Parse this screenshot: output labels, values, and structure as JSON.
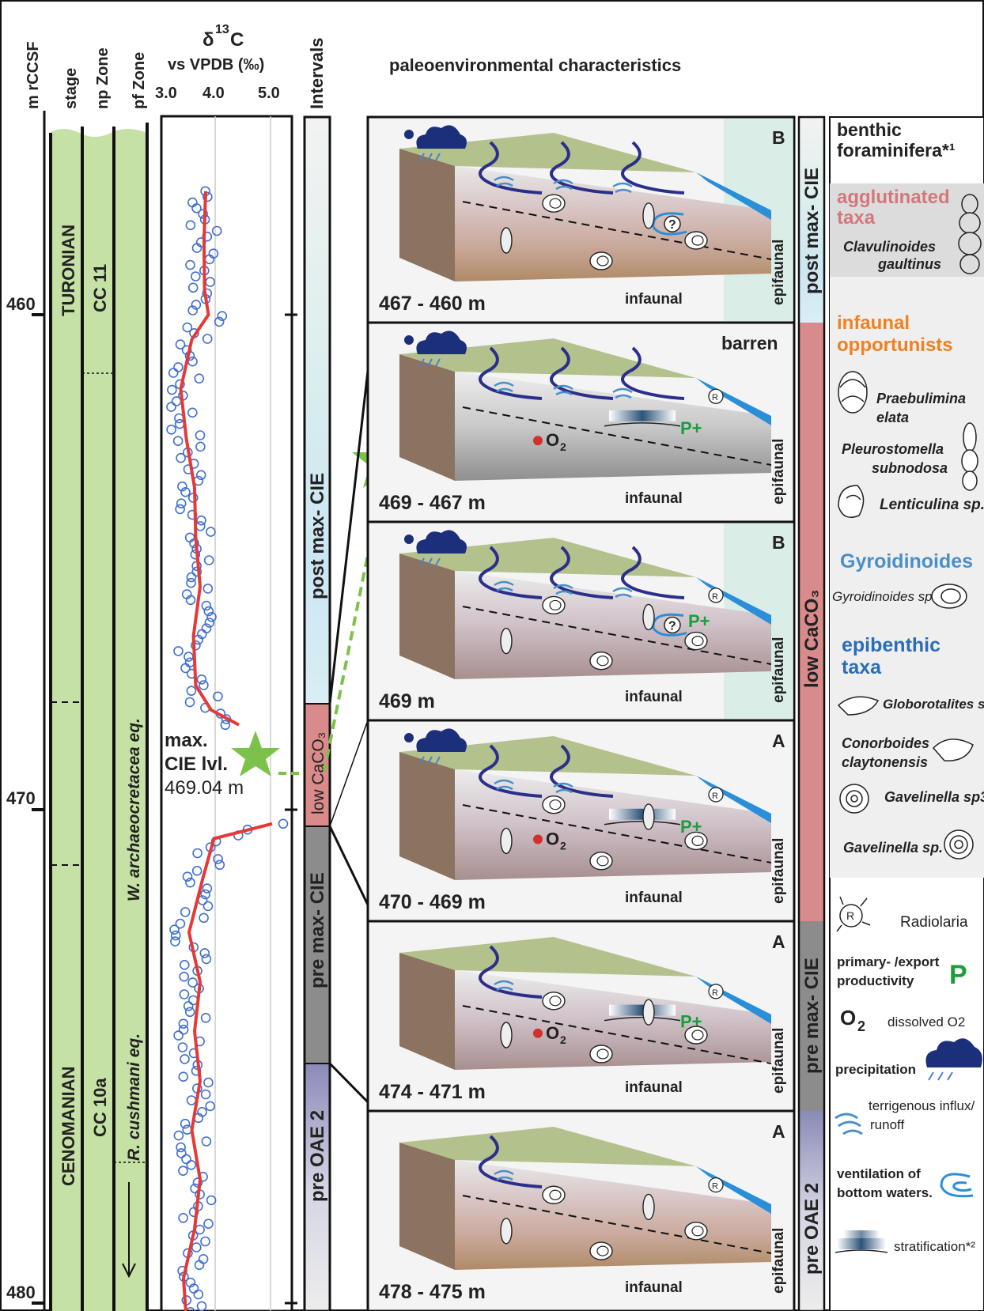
{
  "headers": {
    "depth": "m rCCSF",
    "stage": "stage",
    "np_zone": "np Zone",
    "pf_zone": "pf  Zone",
    "isotope_title_a": "δ",
    "isotope_title_sup": "13",
    "isotope_title_b": "C",
    "isotope_sub": "vs VPDB (‰)",
    "intervals": "Intervals",
    "paleo": "paleoenvironmental  characteristics"
  },
  "isotope_axis": {
    "ticks": [
      "3.0",
      "4.0",
      "5.0"
    ]
  },
  "depth_axis": {
    "ticks": [
      "460",
      "470",
      "480"
    ]
  },
  "stratigraphy": {
    "stage_upper": "TURONIAN",
    "stage_lower": "CENOMANIAN",
    "np_upper": "CC 11",
    "np_lower": "CC 10a",
    "pf_upper": "W. archaeocretacea eq.",
    "pf_lower": "R. cushmani eq."
  },
  "max_cie": {
    "line1": "max.",
    "line2": "CIE lvl.",
    "depth": "469.04 m"
  },
  "intervals": {
    "post": "post max- CIE",
    "low": "low CaCO₃",
    "pre_max": "pre max- CIE",
    "pre_oae": "pre OAE 2"
  },
  "panels": [
    {
      "depth": "467 - 460 m",
      "code": "B"
    },
    {
      "depth": "469 - 467 m",
      "code": "barren"
    },
    {
      "depth": "469 m",
      "code": "B"
    },
    {
      "depth": "470 - 469 m",
      "code": "A"
    },
    {
      "depth": "474 - 471 m",
      "code": "A"
    },
    {
      "depth": "478 - 475 m",
      "code": "A"
    }
  ],
  "panel_labels": {
    "epifaunal": "epifaunal",
    "infaunal": "infaunal",
    "productivity": "P+",
    "oxygen": "O",
    "oxygen_sub": "2",
    "question": "?",
    "radiolaria_mark": "R"
  },
  "right_intervals": {
    "post": "post max- CIE",
    "low": "low CaCO₃",
    "pre_max": "pre max- CIE",
    "pre_oae": "pre OAE 2"
  },
  "legend": {
    "title1": "benthic",
    "title2": "foraminifera*¹",
    "agglutinated1": "agglutinated",
    "agglutinated2": "taxa",
    "clav1": "Clavulinoides",
    "clav2": "gaultinus",
    "infaunal1": "infaunal",
    "infaunal2": "opportunists",
    "praeb1": "Praebulimina",
    "praeb2": "elata",
    "pleuro1": "Pleurostomella",
    "pleuro2": "subnodosa",
    "lenti": "Lenticulina sp.",
    "gyro_title": "Gyroidinoides",
    "gyro_sp": "Gyroidinoides sp.",
    "epi1": "epibenthic",
    "epi2": "taxa",
    "globo": "Globorotalites sp.",
    "conor1": "Conorboides",
    "conor2": "claytonensis",
    "gav3": "Gavelinella sp3",
    "gavsp": "Gavelinella sp.",
    "radiolaria": "Radiolaria",
    "prod1": "primary- /export",
    "prod2": "productivity",
    "prod_symbol": "P",
    "o2_symbol": "O",
    "o2_sub": "2",
    "o2_label": "dissolved O2",
    "precip": "precipitation",
    "terr1": "terrigenous influx/",
    "terr2": "runoff",
    "vent1": "ventilation of",
    "vent2": "bottom waters.",
    "strat": "stratification*²"
  },
  "colors": {
    "stage_green": "#c5e1a5",
    "curve_red": "#e53935",
    "points_blue": "#3f6fcf",
    "low_caco3": "#d98a8a",
    "pre_max": "#8c8c8c",
    "pre_oae": "#9e9ec8",
    "post_blue": "#bfe0ee",
    "star_green": "#7cc24a",
    "agglutinated_red": "#d4777c",
    "infaunal_orange": "#f08020",
    "gyro_blue": "#4a8fc8",
    "epi_blue": "#2a6db8",
    "prod_green": "#1a9e3c"
  }
}
